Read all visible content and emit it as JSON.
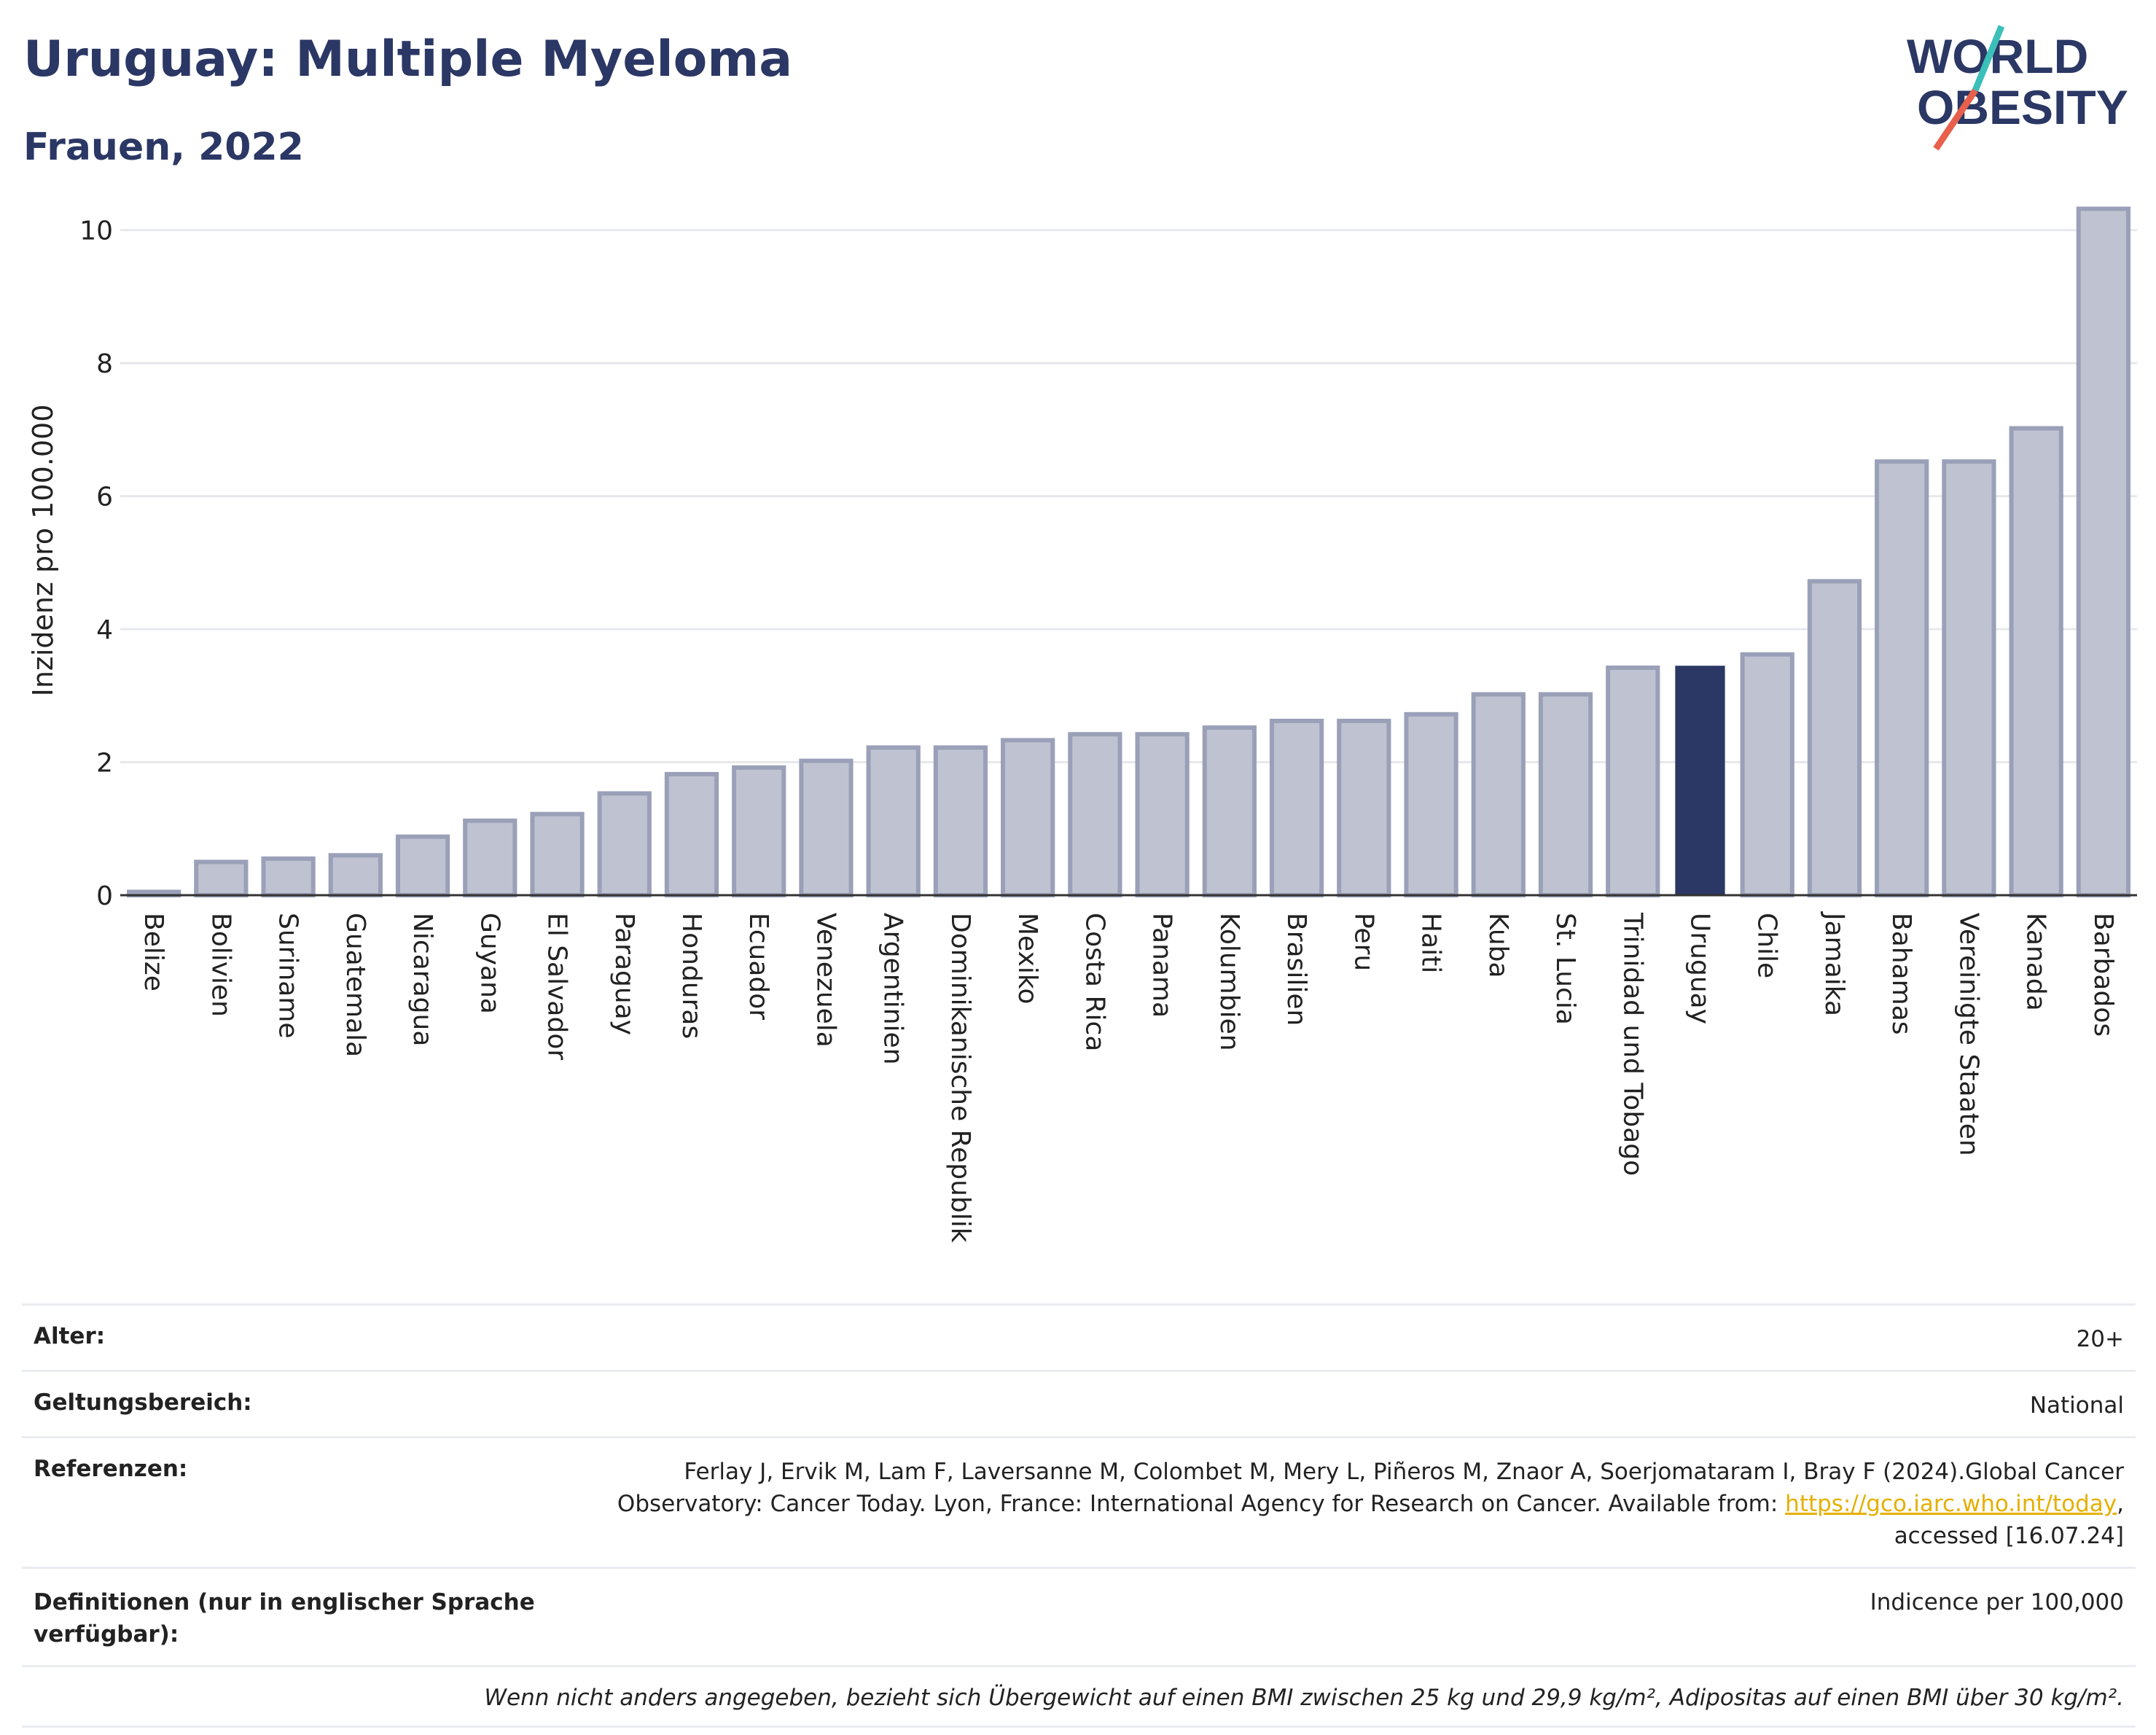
{
  "header": {
    "title": "Uruguay: Multiple Myeloma",
    "subtitle": "Frauen, 2022"
  },
  "logo": {
    "line1": "WORLD",
    "line2": "OBESITY",
    "colors": {
      "text": "#2b3764",
      "accent_teal": "#3bbfb9",
      "accent_red": "#e8604c"
    }
  },
  "colors": {
    "bar_default": "#bfc2d0",
    "bar_default_stroke": "#9aa0b8",
    "bar_highlight": "#2b3764",
    "grid": "#e6e8ec",
    "axis": "#333333"
  },
  "chart_data": {
    "type": "bar",
    "title": "Uruguay: Multiple Myeloma",
    "subtitle": "Frauen, 2022",
    "xlabel": "",
    "ylabel": "Inzidenz pro 100.000",
    "ylim": [
      0,
      10.5
    ],
    "yticks": [
      0,
      2,
      4,
      6,
      8,
      10
    ],
    "grid": true,
    "highlight": "Uruguay",
    "categories": [
      "Belize",
      "Bolivien",
      "Suriname",
      "Guatemala",
      "Nicaragua",
      "Guyana",
      "El Salvador",
      "Paraguay",
      "Honduras",
      "Ecuador",
      "Venezuela",
      "Argentinien",
      "Dominikanische Republik",
      "Mexiko",
      "Costa Rica",
      "Panama",
      "Kolumbien",
      "Brasilien",
      "Peru",
      "Haiti",
      "Kuba",
      "St. Lucia",
      "Trinidad und Tobago",
      "Uruguay",
      "Chile",
      "Jamaika",
      "Bahamas",
      "Vereinigte Staaten",
      "Kanada",
      "Barbados"
    ],
    "values": [
      0.05,
      0.5,
      0.55,
      0.6,
      0.88,
      1.12,
      1.22,
      1.53,
      1.82,
      1.92,
      2.02,
      2.22,
      2.22,
      2.33,
      2.42,
      2.42,
      2.52,
      2.62,
      2.62,
      2.72,
      3.02,
      3.02,
      3.42,
      3.45,
      3.62,
      4.72,
      6.52,
      6.52,
      7.02,
      10.32
    ]
  },
  "info": {
    "age_label": "Alter:",
    "age_value": "20+",
    "scope_label": "Geltungsbereich:",
    "scope_value": "National",
    "ref_label": "Referenzen:",
    "ref_text_1": "Ferlay J, Ervik M, Lam F, Laversanne M, Colombet M, Mery L, Piñeros M, Znaor A, Soerjomataram I, Bray F (2024).Global Cancer",
    "ref_text_2": "Observatory: Cancer Today. Lyon, France: International Agency for Research on Cancer. Available from:",
    "ref_link": "https://gco.iarc.who.int/today",
    "ref_text_3": ",",
    "ref_text_4": "accessed [16.07.24]",
    "def_label": "Definitionen (nur in englischer Sprache verfügbar):",
    "def_value": "Indicence per 100,000",
    "note": "Wenn nicht anders angegeben, bezieht sich Übergewicht auf einen BMI zwischen 25 kg und 29,9 kg/m², Adipositas auf einen BMI über 30 kg/m²."
  }
}
